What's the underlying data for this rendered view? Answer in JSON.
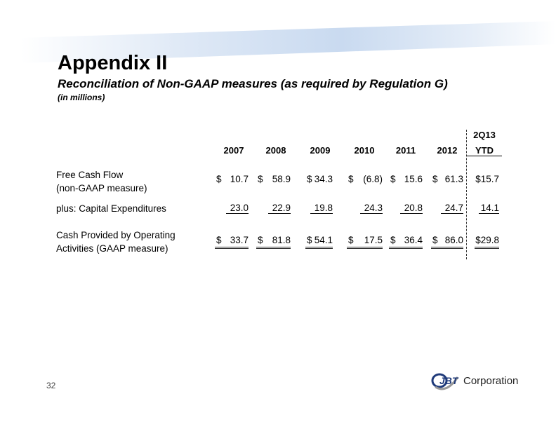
{
  "title": "Appendix II",
  "subtitle": "Reconciliation of Non-GAAP measures (as required by Regulation G)",
  "units": "(in millions)",
  "table": {
    "columns": [
      "2007",
      "2008",
      "2009",
      "2010",
      "2011",
      "2012"
    ],
    "ytd_header": [
      "2Q13",
      "YTD"
    ],
    "rows": [
      {
        "label": [
          "Free Cash Flow",
          "(non-GAAP measure)"
        ],
        "dollar": true,
        "values": [
          "10.7",
          "58.9",
          "34.3",
          "(6.8)",
          "15.6",
          "61.3"
        ],
        "ytd": "$15.7"
      },
      {
        "label": [
          "plus:  Capital Expenditures"
        ],
        "dollar": false,
        "values": [
          "23.0",
          "22.9",
          "19.8",
          "24.3",
          "20.8",
          "24.7"
        ],
        "ytd": "14.1"
      },
      {
        "label": [
          "Cash Provided by Operating",
          "Activities (GAAP measure)"
        ],
        "dollar": true,
        "values": [
          "33.7",
          "81.8",
          "54.1",
          "17.5",
          "36.4",
          "86.0"
        ],
        "ytd": "$29.8"
      }
    ]
  },
  "page_number": "32",
  "logo": {
    "mark": "JBT",
    "text": "Corporation",
    "color": "#1f3a7a"
  }
}
